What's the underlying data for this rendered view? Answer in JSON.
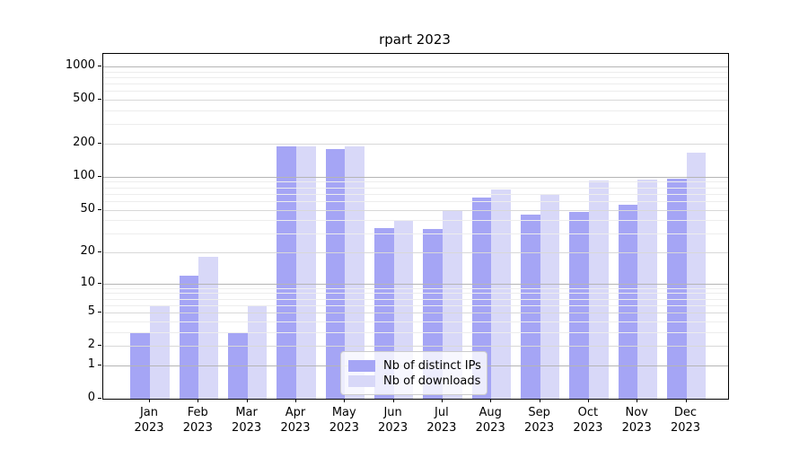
{
  "title": "rpart 2023",
  "chart_data": {
    "type": "bar",
    "title": "rpart 2023",
    "categories": [
      "Jan 2023",
      "Feb 2023",
      "Mar 2023",
      "Apr 2023",
      "May 2023",
      "Jun 2023",
      "Jul 2023",
      "Aug 2023",
      "Sep 2023",
      "Oct 2023",
      "Nov 2023",
      "Dec 2023"
    ],
    "series": [
      {
        "name": "Nb of distinct IPs",
        "color": "#a5a5f5",
        "values": [
          3,
          12,
          3,
          188,
          180,
          34,
          33,
          65,
          45,
          48,
          55,
          97
        ]
      },
      {
        "name": "Nb of downloads",
        "color": "#d8d8f8",
        "values": [
          6,
          18,
          6,
          189,
          188,
          40,
          50,
          77,
          70,
          92,
          94,
          167
        ]
      }
    ],
    "xlabel": "",
    "ylabel": "",
    "yscale": "log1p",
    "yticks": [
      0,
      1,
      2,
      5,
      10,
      20,
      50,
      100,
      200,
      500,
      1000
    ],
    "ylim": [
      0,
      1300
    ],
    "grid": "both",
    "legend_position": "lower center"
  }
}
